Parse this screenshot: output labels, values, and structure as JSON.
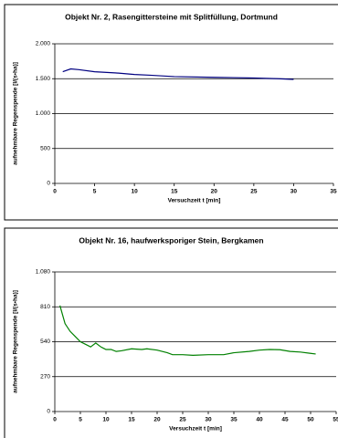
{
  "chart_data": [
    {
      "type": "line",
      "title": "Objekt Nr. 2, Rasengittersteine mit Splitfüllung, Dortmund",
      "x_label": "Versuchzeit t [min]",
      "y_label": "aufnehmbare Regenspende [l/(s•ha)]",
      "x": [
        1,
        2,
        3,
        5,
        8,
        10,
        12,
        15,
        20,
        25,
        28,
        30
      ],
      "values": [
        1600,
        1640,
        1630,
        1600,
        1580,
        1560,
        1550,
        1530,
        1520,
        1510,
        1500,
        1490
      ],
      "color": "#000080",
      "xlim": [
        0,
        35
      ],
      "ylim": [
        0,
        2000
      ],
      "xticks": [
        0,
        5,
        10,
        15,
        20,
        25,
        30,
        35
      ],
      "yticks": [
        0,
        500,
        {
          "value": 1000,
          "label": "1.000"
        },
        {
          "value": 1500,
          "label": "1.500"
        },
        {
          "value": 2000,
          "label": "2.000"
        }
      ],
      "grid": true
    },
    {
      "type": "line",
      "title": "Objekt Nr. 16, haufwerksporiger Stein, Bergkamen",
      "x_label": "Versuchzeit t [min]",
      "y_label": "aufnehmbare Regenspende [l/(s•ha)]",
      "x": [
        1,
        2,
        3,
        4,
        5,
        6,
        7,
        8,
        9,
        10,
        11,
        12,
        13,
        15,
        17,
        18,
        20,
        22,
        23,
        25,
        27,
        30,
        33,
        35,
        38,
        40,
        42,
        44,
        46,
        48,
        50,
        51
      ],
      "values": [
        820,
        680,
        620,
        580,
        540,
        520,
        500,
        530,
        500,
        480,
        480,
        465,
        470,
        485,
        480,
        485,
        475,
        455,
        440,
        440,
        435,
        440,
        440,
        455,
        465,
        475,
        480,
        478,
        465,
        460,
        450,
        445
      ],
      "color": "#008000",
      "xlim": [
        0,
        55
      ],
      "ylim": [
        0,
        1080
      ],
      "xticks": [
        0,
        5,
        10,
        15,
        20,
        25,
        30,
        35,
        40,
        45,
        50,
        55
      ],
      "yticks": [
        0,
        270,
        540,
        810,
        {
          "value": 1080,
          "label": "1.080"
        }
      ],
      "grid": true
    }
  ]
}
